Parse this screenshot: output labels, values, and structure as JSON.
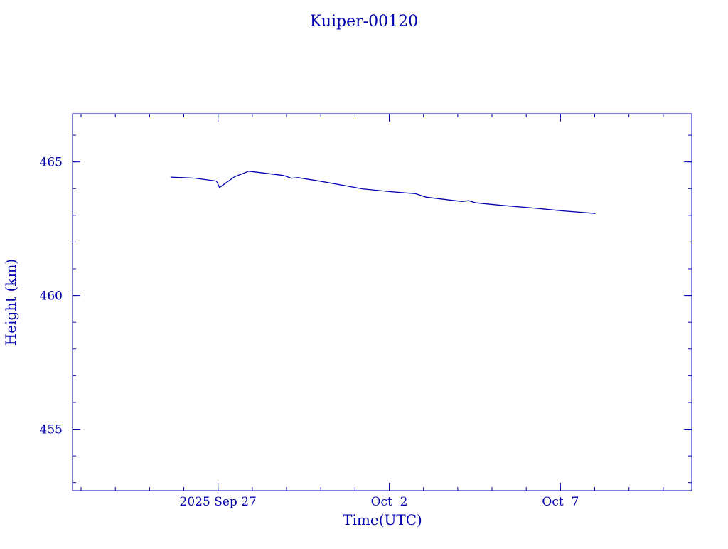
{
  "chart_data": {
    "type": "line",
    "title": "Kuiper-00120",
    "xlabel": "Time(UTC)",
    "ylabel": "Height (km)",
    "xlim": [
      "2025-09-22T18:00",
      "2025-10-10T20:00"
    ],
    "ylim": [
      452.7,
      466.8
    ],
    "x_ticks": [
      {
        "date": "2025-09-27T00:00",
        "label": "2025 Sep 27"
      },
      {
        "date": "2025-10-02T00:00",
        "label": "Oct  2"
      },
      {
        "date": "2025-10-07T00:00",
        "label": "Oct  7"
      }
    ],
    "y_ticks": [
      {
        "value": 455,
        "label": "455"
      },
      {
        "value": 460,
        "label": "460"
      },
      {
        "value": 465,
        "label": "465"
      }
    ],
    "grid": false,
    "color": "#0000b0",
    "series": [
      {
        "x": [
          "2025-09-25T14:40",
          "2025-09-26T08:00",
          "2025-09-26T23:00",
          "2025-09-27T01:00",
          "2025-09-27T11:30",
          "2025-09-27T21:30",
          "2025-09-28T10:00",
          "2025-09-28T22:00",
          "2025-09-29T03:20",
          "2025-09-29T08:10",
          "2025-09-29T23:10",
          "2025-09-30T19:10",
          "2025-10-01T05:00",
          "2025-10-02T00:00",
          "2025-10-02T18:25",
          "2025-10-03T02:00",
          "2025-10-04T02:50",
          "2025-10-04T07:40",
          "2025-10-04T12:45",
          "2025-10-05T03:40",
          "2025-10-06T09:35",
          "2025-10-07T00:30",
          "2025-10-08T00:30"
        ],
        "y": [
          464.43,
          464.39,
          464.28,
          464.04,
          464.44,
          464.65,
          464.57,
          464.49,
          464.39,
          464.41,
          464.28,
          464.09,
          463.99,
          463.89,
          463.81,
          463.68,
          463.52,
          463.55,
          463.47,
          463.39,
          463.25,
          463.17,
          463.07
        ]
      }
    ]
  }
}
